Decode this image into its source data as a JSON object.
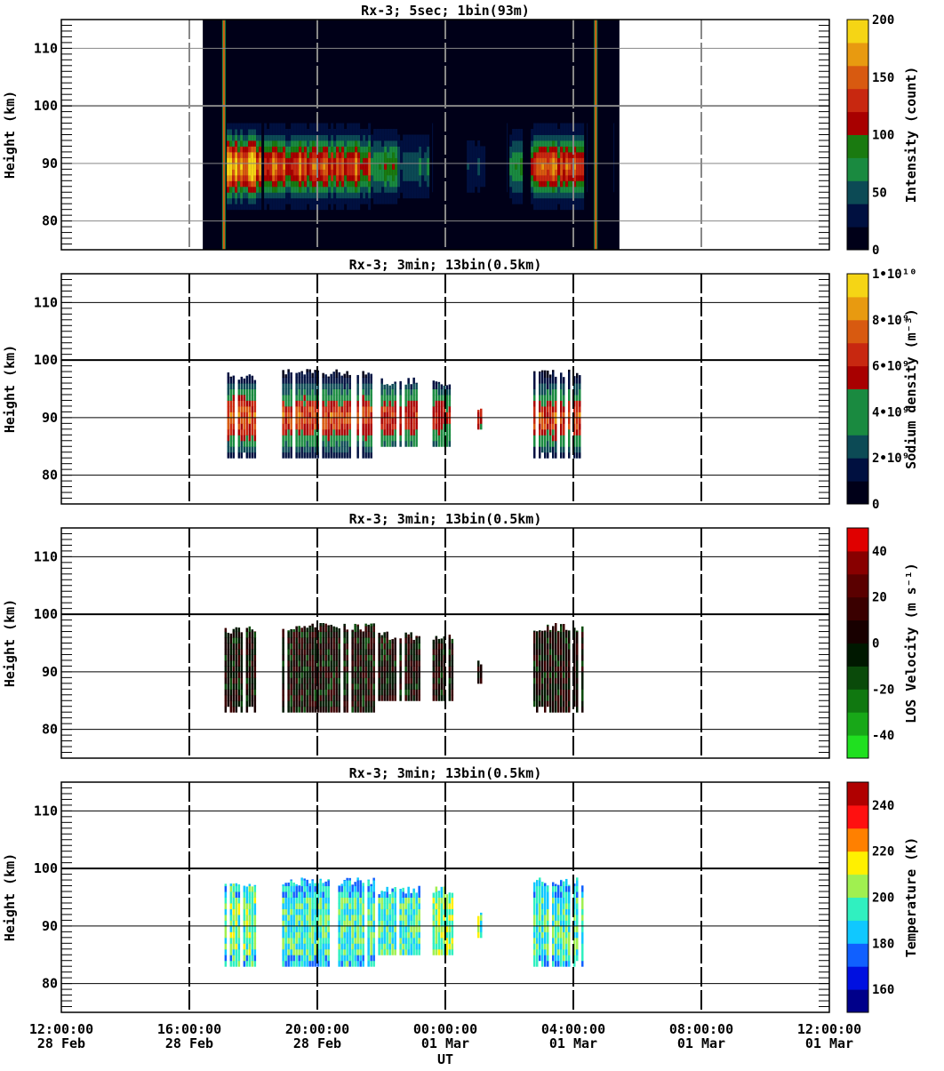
{
  "chart_data": {
    "type": "heatmap",
    "xlabel": "UT",
    "xlim_hours": [
      0,
      24
    ],
    "x_ticks": [
      {
        "hour": 0,
        "time": "12:00:00",
        "date": "28 Feb"
      },
      {
        "hour": 4,
        "time": "16:00:00",
        "date": "28 Feb"
      },
      {
        "hour": 8,
        "time": "20:00:00",
        "date": "28 Feb"
      },
      {
        "hour": 12,
        "time": "00:00:00",
        "date": "01 Mar"
      },
      {
        "hour": 16,
        "time": "04:00:00",
        "date": "01 Mar"
      },
      {
        "hour": 20,
        "time": "08:00:00",
        "date": "01 Mar"
      },
      {
        "hour": 24,
        "time": "12:00:00",
        "date": "01 Mar"
      }
    ],
    "panels": [
      {
        "title": "Rx-3;  5sec; 1bin(93m)",
        "ylabel": "Height (km)",
        "ylim": [
          75,
          115
        ],
        "y_ticks": [
          "80",
          "90",
          "100",
          "110"
        ],
        "colorbar": {
          "label": "Intensity (count)",
          "range": [
            0,
            200
          ],
          "ticks": [
            "0",
            "50",
            "100",
            "150",
            "200"
          ],
          "colors": [
            "#000018",
            "#001040",
            "#0c4a55",
            "#1a8a40",
            "#1a7a10",
            "#a80000",
            "#c82810",
            "#d85a10",
            "#e89a10",
            "#f5d515"
          ]
        },
        "observation_window_hours": [
          4.42,
          17.44
        ],
        "edge_lines_hours": [
          5.08,
          16.7
        ],
        "segments_hours_from_start": [
          [
            5.1,
            6.2,
            83,
            99,
            200
          ],
          [
            6.3,
            9.6,
            84,
            98,
            150
          ],
          [
            9.6,
            10.5,
            85,
            97,
            90
          ],
          [
            10.5,
            11.5,
            86,
            96,
            50
          ],
          [
            12.6,
            13.2,
            87,
            93,
            30
          ],
          [
            14.0,
            14.4,
            86,
            95,
            70
          ],
          [
            14.6,
            16.3,
            84,
            98,
            160
          ]
        ]
      },
      {
        "title": "Rx-3; 3min; 13bin(0.5km)",
        "ylabel": "Height (km)",
        "ylim": [
          75,
          115
        ],
        "y_ticks": [
          "80",
          "90",
          "100",
          "110"
        ],
        "colorbar": {
          "label": "Sodium density (m⁻³)",
          "range": [
            0,
            10000000000.0
          ],
          "ticks": [
            "0",
            "2•10⁹",
            "4•10⁹",
            "6•10⁹",
            "8•10⁹",
            "1•10¹⁰"
          ],
          "colors": [
            "#000018",
            "#001040",
            "#0c4a55",
            "#1a8a40",
            "#1a8a40",
            "#a80000",
            "#c82810",
            "#d85a10",
            "#e89a10",
            "#f5d515"
          ]
        },
        "segments_hours_from_start": [
          [
            5.1,
            6.1,
            83.5,
            98,
            7
          ],
          [
            6.9,
            9.8,
            83,
            98.5,
            6.5
          ],
          [
            9.9,
            11.2,
            85,
            97,
            6
          ],
          [
            11.6,
            12.2,
            85,
            97,
            5.5
          ],
          [
            13.0,
            13.1,
            88,
            92.5,
            6
          ],
          [
            14.75,
            16.3,
            83.5,
            98.5,
            6.5
          ]
        ]
      },
      {
        "title": "Rx-3; 3min; 13bin(0.5km)",
        "ylabel": "Height (km)",
        "ylim": [
          75,
          115
        ],
        "y_ticks": [
          "80",
          "90",
          "100",
          "110"
        ],
        "colorbar": {
          "label": "LOS Velocity (m s⁻¹)",
          "range": [
            -50,
            50
          ],
          "ticks": [
            "-40",
            "-20",
            "0",
            "20",
            "40"
          ],
          "colors": [
            "#20e020",
            "#18a818",
            "#107810",
            "#0a4a0a",
            "#001800",
            "#180000",
            "#3a0000",
            "#5a0000",
            "#880000",
            "#e00000"
          ]
        },
        "segments_hours_from_start": [
          [
            5.1,
            6.1,
            83.5,
            98,
            0
          ],
          [
            6.9,
            9.8,
            83,
            98.5,
            0
          ],
          [
            9.9,
            11.2,
            85,
            97,
            0
          ],
          [
            11.6,
            12.2,
            85,
            97,
            0
          ],
          [
            13.0,
            13.1,
            88,
            92.5,
            0
          ],
          [
            14.75,
            16.3,
            83.5,
            98.5,
            0
          ]
        ]
      },
      {
        "title": "Rx-3; 3min; 13bin(0.5km)",
        "ylabel": "Height (km)",
        "ylim": [
          75,
          115
        ],
        "y_ticks": [
          "80",
          "90",
          "100",
          "110"
        ],
        "colorbar": {
          "label": "Temperature (K)",
          "range": [
            150,
            250
          ],
          "ticks": [
            "160",
            "180",
            "200",
            "220",
            "240"
          ],
          "colors": [
            "#00008a",
            "#0010e0",
            "#1060ff",
            "#10c8ff",
            "#30f0c0",
            "#a0f050",
            "#fff000",
            "#ff8000",
            "#ff1010",
            "#b00000"
          ]
        },
        "segments_hours_from_start": [
          [
            5.1,
            6.1,
            83.5,
            98,
            200
          ],
          [
            6.9,
            9.8,
            83,
            98.5,
            195
          ],
          [
            9.9,
            11.2,
            85,
            97,
            195
          ],
          [
            11.6,
            12.2,
            85,
            97,
            205
          ],
          [
            13.0,
            13.1,
            88,
            92.5,
            200
          ],
          [
            14.75,
            16.3,
            83.5,
            98.5,
            195
          ]
        ]
      }
    ]
  }
}
